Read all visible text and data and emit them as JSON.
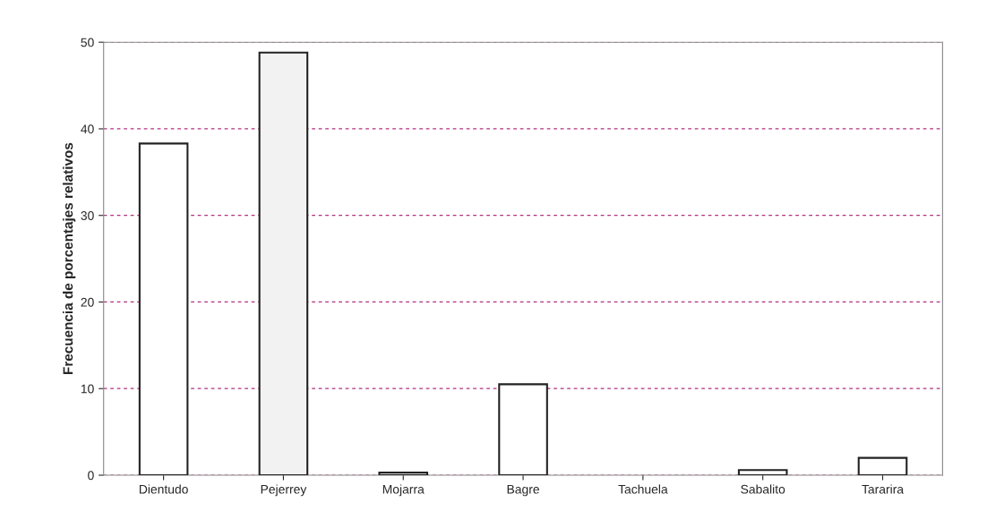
{
  "chart_data": {
    "type": "bar",
    "ylabel": "Frecuencia de porcentajes relativos",
    "categories": [
      "Dientudo",
      "Pejerrey",
      "Mojarra",
      "Bagre",
      "Tachuela",
      "Sabalito",
      "Tararira"
    ],
    "values": [
      38.3,
      48.8,
      0.3,
      10.5,
      0,
      0.6,
      2.0
    ],
    "colors": [
      "#ffffff",
      "#f2f2f2",
      "#ffffff",
      "#ffffff",
      "#ffffff",
      "#ffffff",
      "#ffffff"
    ],
    "ylim": [
      0,
      50
    ],
    "yticks": [
      0,
      10,
      20,
      30,
      40,
      50
    ],
    "grid": "y",
    "line_style": "dashed"
  }
}
